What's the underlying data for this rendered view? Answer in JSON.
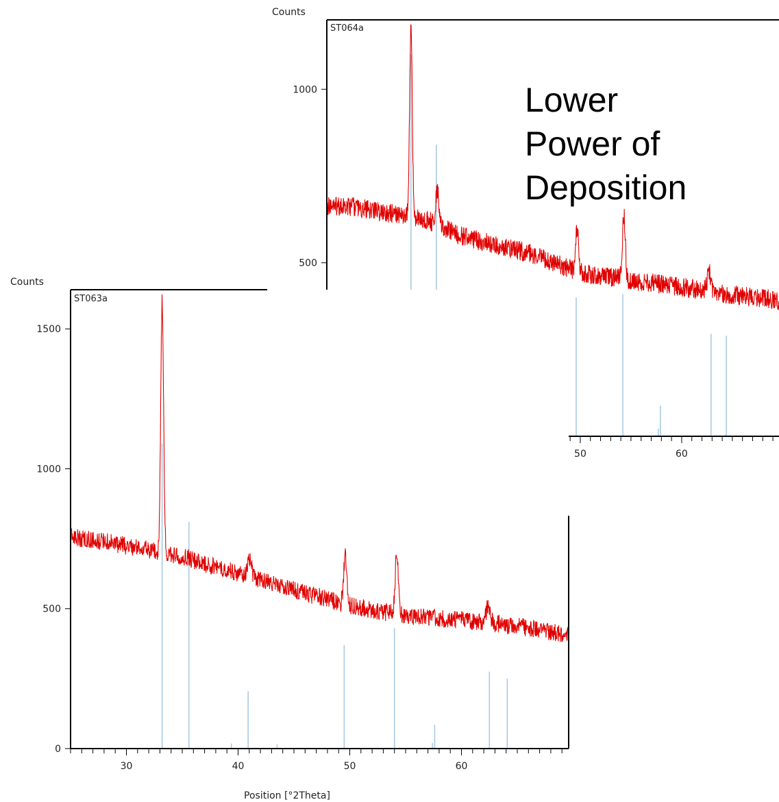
{
  "colors": {
    "pattern_line": "#e00000",
    "reference_line": "#a9cbe4",
    "axis": "#000000",
    "background": "#ffffff"
  },
  "annotation": {
    "lines": [
      "Lower",
      "Power of",
      "Deposition"
    ]
  },
  "chart_data": [
    {
      "id": "chart_back",
      "type": "line",
      "sample_label": "ST064a",
      "xlabel": "Position [°2Theta]",
      "ylabel": "Counts",
      "xlim": [
        25,
        69.6
      ],
      "ylim": [
        0,
        1200
      ],
      "x_ticks": [
        30,
        40,
        50,
        60
      ],
      "y_ticks": [
        0,
        500,
        1000
      ],
      "baseline": [
        [
          25,
          665
        ],
        [
          28,
          660
        ],
        [
          30,
          650
        ],
        [
          32,
          638
        ],
        [
          35,
          622
        ],
        [
          38,
          580
        ],
        [
          40,
          563
        ],
        [
          45,
          528
        ],
        [
          50,
          470
        ],
        [
          55,
          450
        ],
        [
          60,
          430
        ],
        [
          65,
          408
        ],
        [
          69.6,
          392
        ]
      ],
      "noise": 28,
      "peaks": [
        {
          "x": 33.3,
          "height": 560,
          "width": 0.18
        },
        {
          "x": 35.9,
          "height": 95,
          "width": 0.25
        },
        {
          "x": 49.7,
          "height": 130,
          "width": 0.2
        },
        {
          "x": 54.3,
          "height": 185,
          "width": 0.2
        },
        {
          "x": 62.7,
          "height": 55,
          "width": 0.25
        }
      ],
      "reference_lines": [
        {
          "x": 33.3,
          "counts": 1100
        },
        {
          "x": 35.8,
          "counts": 840
        },
        {
          "x": 39.5,
          "counts": 20
        },
        {
          "x": 41.1,
          "counts": 225
        },
        {
          "x": 43.6,
          "counts": 18
        },
        {
          "x": 49.6,
          "counts": 400
        },
        {
          "x": 54.2,
          "counts": 410
        },
        {
          "x": 57.7,
          "counts": 22
        },
        {
          "x": 57.9,
          "counts": 88
        },
        {
          "x": 62.9,
          "counts": 295
        },
        {
          "x": 64.4,
          "counts": 290
        }
      ]
    },
    {
      "id": "chart_front",
      "type": "line",
      "sample_label": "ST063a",
      "xlabel": "Position [°2Theta]",
      "ylabel": "Counts",
      "xlim": [
        25,
        69.6
      ],
      "ylim": [
        0,
        1640
      ],
      "x_ticks": [
        30,
        40,
        50,
        60
      ],
      "y_ticks": [
        0,
        500,
        1000,
        1500
      ],
      "baseline": [
        [
          25,
          755
        ],
        [
          28,
          740
        ],
        [
          30,
          725
        ],
        [
          32,
          712
        ],
        [
          33,
          700
        ],
        [
          35,
          688
        ],
        [
          38,
          648
        ],
        [
          40,
          628
        ],
        [
          45,
          568
        ],
        [
          50,
          510
        ],
        [
          55,
          475
        ],
        [
          60,
          460
        ],
        [
          65,
          438
        ],
        [
          69.6,
          408
        ]
      ],
      "noise": 32,
      "peaks": [
        {
          "x": 33.2,
          "height": 900,
          "width": 0.18
        },
        {
          "x": 41.0,
          "height": 70,
          "width": 0.25
        },
        {
          "x": 49.6,
          "height": 170,
          "width": 0.2
        },
        {
          "x": 54.2,
          "height": 210,
          "width": 0.2
        },
        {
          "x": 62.4,
          "height": 65,
          "width": 0.25
        }
      ],
      "reference_lines": [
        {
          "x": 33.2,
          "counts": 1090
        },
        {
          "x": 35.6,
          "counts": 810
        },
        {
          "x": 39.4,
          "counts": 18
        },
        {
          "x": 40.9,
          "counts": 205
        },
        {
          "x": 43.5,
          "counts": 15
        },
        {
          "x": 49.5,
          "counts": 370
        },
        {
          "x": 54.0,
          "counts": 430
        },
        {
          "x": 57.4,
          "counts": 20
        },
        {
          "x": 57.6,
          "counts": 85
        },
        {
          "x": 62.5,
          "counts": 275
        },
        {
          "x": 64.1,
          "counts": 250
        }
      ]
    }
  ]
}
